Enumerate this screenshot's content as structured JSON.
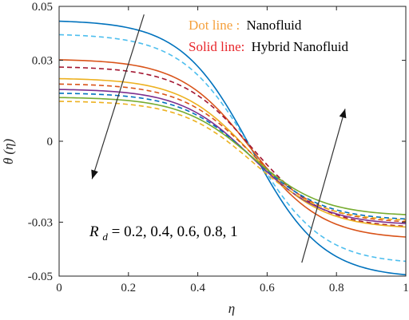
{
  "chart_data": {
    "type": "line",
    "xlabel": "η",
    "ylabel": "θ (η)",
    "xlim": [
      0,
      1
    ],
    "ylim": [
      -0.05,
      0.05
    ],
    "xticks": [
      {
        "value": 0,
        "label": "0"
      },
      {
        "value": 0.2,
        "label": "0.2"
      },
      {
        "value": 0.4,
        "label": "0.4"
      },
      {
        "value": 0.6,
        "label": "0.6"
      },
      {
        "value": 0.8,
        "label": "0.8"
      },
      {
        "value": 1,
        "label": "1"
      }
    ],
    "yticks": [
      {
        "value": -0.05,
        "label": "-0.05"
      },
      {
        "value": -0.03,
        "label": "-0.03"
      },
      {
        "value": 0,
        "label": "0"
      },
      {
        "value": 0.03,
        "label": "0.03"
      },
      {
        "value": 0.05,
        "label": "0.05"
      }
    ],
    "grid": false,
    "legend": {
      "placement": "top-right",
      "dot_prefix": "Dot line   :",
      "dot_name": "Nanofluid",
      "dot_color": "#f5a03c",
      "solid_prefix": "Solid line:",
      "solid_name": "Hybrid Nanofluid",
      "solid_color": "#e8262b"
    },
    "annotation": {
      "symbol": "R",
      "subscript": "d",
      "values_text": " = 0.2, 0.4, 0.6, 0.8, 1"
    },
    "series": [
      {
        "style": "solid",
        "color": "#0072bd",
        "y0": 0.0445,
        "y1": -0.0495
      },
      {
        "style": "dashed",
        "color": "#4dbeee",
        "y0": 0.0395,
        "y1": -0.0445
      },
      {
        "style": "solid",
        "color": "#d95319",
        "y0": 0.0302,
        "y1": -0.0355
      },
      {
        "style": "dashed",
        "color": "#a2142f",
        "y0": 0.0275,
        "y1": -0.0315
      },
      {
        "style": "solid",
        "color": "#edb120",
        "y0": 0.0232,
        "y1": -0.0318
      },
      {
        "style": "dashed",
        "color": "#d95319",
        "y0": 0.0212,
        "y1": -0.0298
      },
      {
        "style": "solid",
        "color": "#7e2f8e",
        "y0": 0.0192,
        "y1": -0.0305
      },
      {
        "style": "dashed",
        "color": "#0072bd",
        "y0": 0.0178,
        "y1": -0.0288
      },
      {
        "style": "solid",
        "color": "#77ac30",
        "y0": 0.0162,
        "y1": -0.0272
      },
      {
        "style": "dashed",
        "color": "#edb120",
        "y0": 0.0148,
        "y1": -0.0292
      }
    ],
    "arrows": [
      {
        "from": [
          0.245,
          0.047
        ],
        "to": [
          0.095,
          -0.014
        ]
      },
      {
        "from": [
          0.7,
          -0.045
        ],
        "to": [
          0.825,
          0.012
        ]
      }
    ]
  }
}
